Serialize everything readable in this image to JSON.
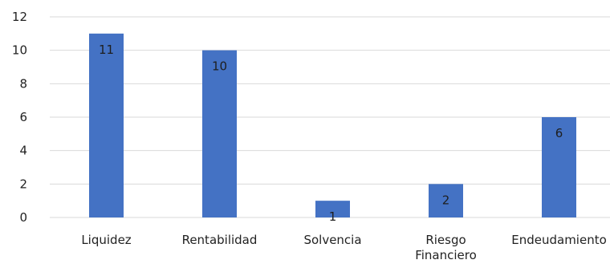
{
  "chart_data": {
    "type": "bar",
    "categories": [
      "Liquidez",
      "Rentabilidad",
      "Solvencia",
      "Riesgo Financiero",
      "Endeudamiento"
    ],
    "category_lines": [
      [
        "Liquidez"
      ],
      [
        "Rentabilidad"
      ],
      [
        "Solvencia"
      ],
      [
        "Riesgo",
        "Financiero"
      ],
      [
        "Endeudamiento"
      ]
    ],
    "values": [
      11,
      10,
      1,
      2,
      6
    ],
    "data_labels": [
      "11",
      "10",
      "1",
      "2",
      "6"
    ],
    "yticks": [
      "0",
      "2",
      "4",
      "6",
      "8",
      "10",
      "12"
    ],
    "ylim": [
      0,
      12
    ],
    "grid": true,
    "bar_color": "#4472c4",
    "title": "",
    "xlabel": "",
    "ylabel": ""
  }
}
